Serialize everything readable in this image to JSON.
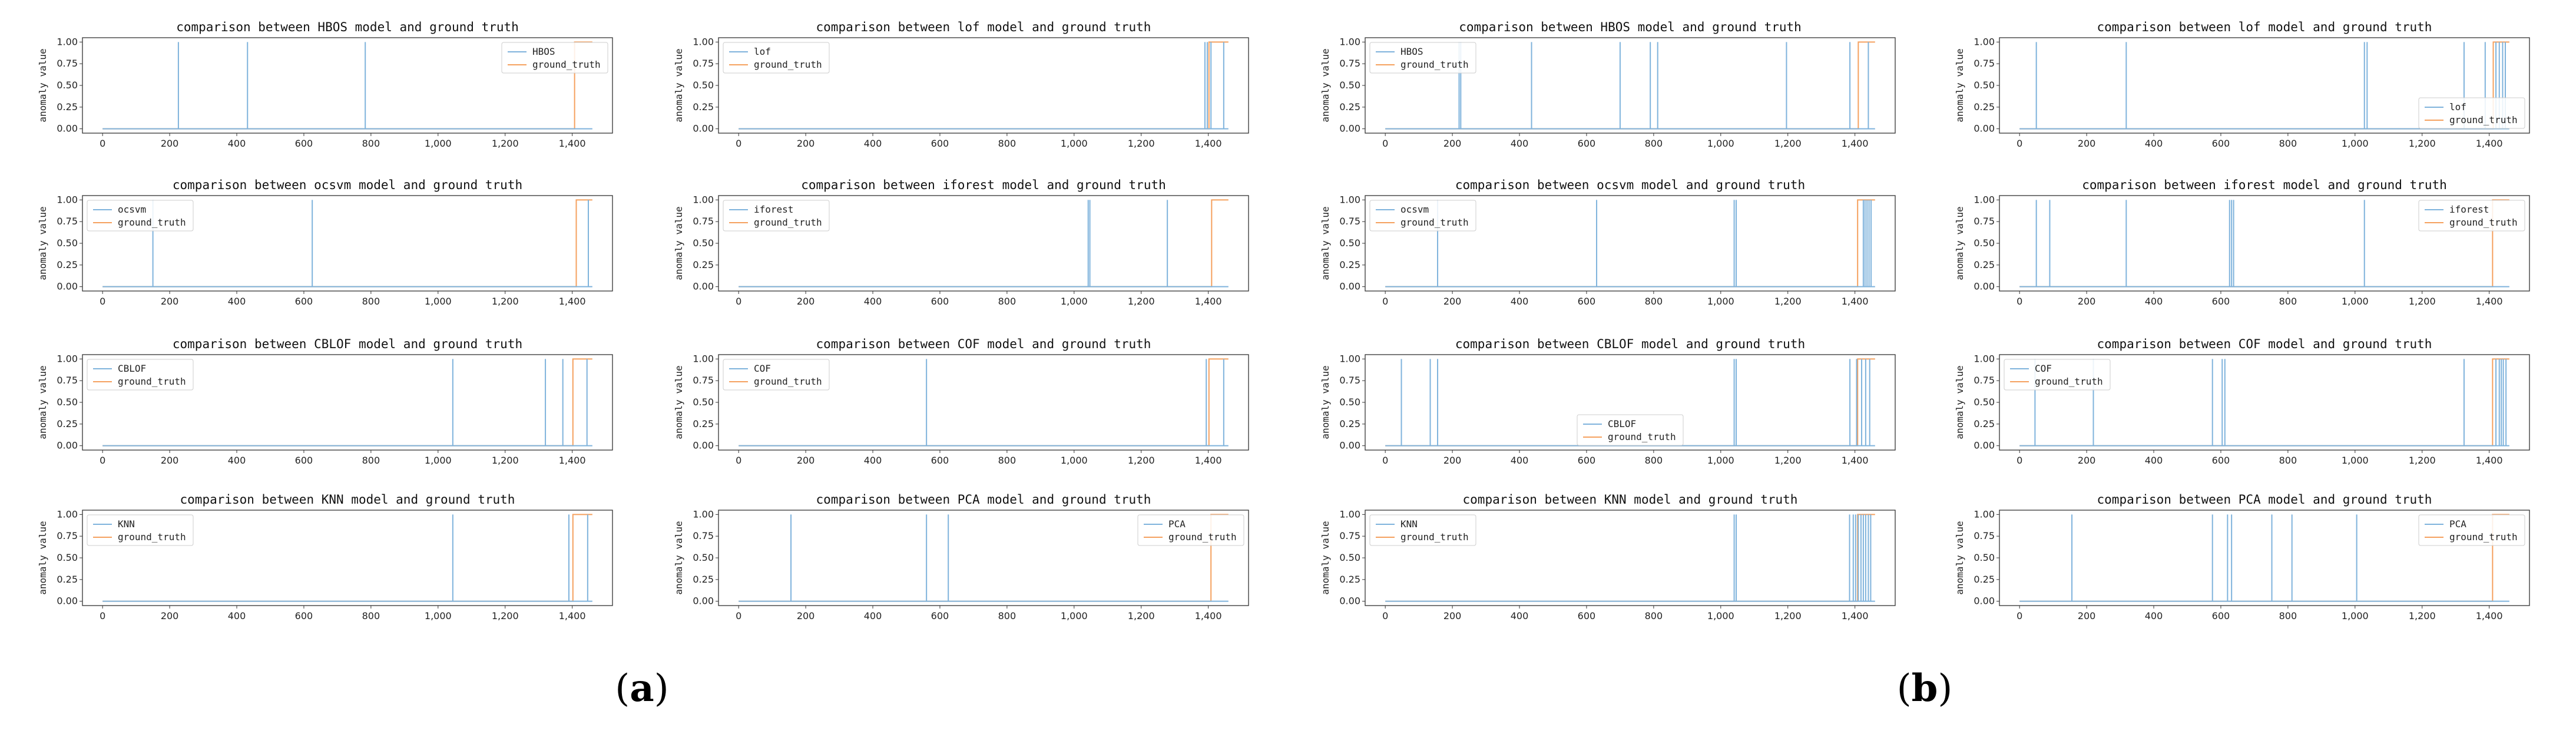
{
  "figure_labels": [
    {
      "open": "(",
      "letter": "a",
      "close": ")"
    },
    {
      "open": "(",
      "letter": "b",
      "close": ")"
    }
  ],
  "colors": {
    "model": "#7fb3dc",
    "truth": "#f5a15f",
    "axis": "#333333"
  },
  "chart_data": [
    {
      "type": "line",
      "group": "a",
      "title": "comparison between HBOS model and ground truth",
      "ylabel": "anomaly value",
      "legend": [
        "HBOS",
        "ground_truth"
      ],
      "legend_loc": "upper-right",
      "xlim": [
        -60,
        1520
      ],
      "ylim": [
        -0.05,
        1.05
      ],
      "xticks": [
        0,
        200,
        400,
        600,
        800,
        1000,
        1200,
        1400
      ],
      "xtick_labels": [
        "0",
        "200",
        "400",
        "600",
        "800",
        "1,000",
        "1,200",
        "1,400"
      ],
      "yticks": [
        0,
        0.25,
        0.5,
        0.75,
        1.0
      ],
      "ytick_labels": [
        "0.00",
        "0.25",
        "0.50",
        "0.75",
        "1.00"
      ],
      "model_spikes": [
        226,
        432,
        783
      ],
      "truth_rise": 1407,
      "x_end": 1460
    },
    {
      "type": "line",
      "group": "a",
      "title": "comparison between lof model and ground truth",
      "ylabel": "anomaly value",
      "legend": [
        "lof",
        "ground_truth"
      ],
      "legend_loc": "upper-left",
      "xlim": [
        -60,
        1520
      ],
      "ylim": [
        -0.05,
        1.05
      ],
      "xticks": [
        0,
        200,
        400,
        600,
        800,
        1000,
        1200,
        1400
      ],
      "xtick_labels": [
        "0",
        "200",
        "400",
        "600",
        "800",
        "1,000",
        "1,200",
        "1,400"
      ],
      "yticks": [
        0,
        0.25,
        0.5,
        0.75,
        1.0
      ],
      "ytick_labels": [
        "0.00",
        "0.25",
        "0.50",
        "0.75",
        "1.00"
      ],
      "model_spikes": [
        1390,
        1397,
        1408,
        1446
      ],
      "truth_rise": 1402,
      "x_end": 1460
    },
    {
      "type": "line",
      "group": "a",
      "title": "comparison between ocsvm model and ground truth",
      "ylabel": "anomaly value",
      "legend": [
        "ocsvm",
        "ground_truth"
      ],
      "legend_loc": "upper-left",
      "xlim": [
        -60,
        1520
      ],
      "ylim": [
        -0.05,
        1.05
      ],
      "xticks": [
        0,
        200,
        400,
        600,
        800,
        1000,
        1200,
        1400
      ],
      "xtick_labels": [
        "0",
        "200",
        "400",
        "600",
        "800",
        "1,000",
        "1,200",
        "1,400"
      ],
      "yticks": [
        0,
        0.25,
        0.5,
        0.75,
        1.0
      ],
      "ytick_labels": [
        "0.00",
        "0.25",
        "0.50",
        "0.75",
        "1.00"
      ],
      "model_spikes": [
        150,
        625,
        1448
      ],
      "truth_rise": 1412,
      "x_end": 1460
    },
    {
      "type": "line",
      "group": "a",
      "title": "comparison between iforest model and ground truth",
      "ylabel": "anomaly value",
      "legend": [
        "iforest",
        "ground_truth"
      ],
      "legend_loc": "upper-left",
      "xlim": [
        -60,
        1520
      ],
      "ylim": [
        -0.05,
        1.05
      ],
      "xticks": [
        0,
        200,
        400,
        600,
        800,
        1000,
        1200,
        1400
      ],
      "xtick_labels": [
        "0",
        "200",
        "400",
        "600",
        "800",
        "1,000",
        "1,200",
        "1,400"
      ],
      "yticks": [
        0,
        0.25,
        0.5,
        0.75,
        1.0
      ],
      "ytick_labels": [
        "0.00",
        "0.25",
        "0.50",
        "0.75",
        "1.00"
      ],
      "model_spikes": [
        1042,
        1047,
        1278
      ],
      "truth_rise": 1410,
      "x_end": 1460
    },
    {
      "type": "line",
      "group": "a",
      "title": "comparison between CBLOF model and ground truth",
      "ylabel": "anomaly value",
      "legend": [
        "CBLOF",
        "ground_truth"
      ],
      "legend_loc": "upper-left",
      "xlim": [
        -60,
        1520
      ],
      "ylim": [
        -0.05,
        1.05
      ],
      "xticks": [
        0,
        200,
        400,
        600,
        800,
        1000,
        1200,
        1400
      ],
      "xtick_labels": [
        "0",
        "200",
        "400",
        "600",
        "800",
        "1,000",
        "1,200",
        "1,400"
      ],
      "yticks": [
        0,
        0.25,
        0.5,
        0.75,
        1.0
      ],
      "ytick_labels": [
        "0.00",
        "0.25",
        "0.50",
        "0.75",
        "1.00"
      ],
      "model_spikes": [
        1044,
        1320,
        1372,
        1444
      ],
      "truth_rise": 1402,
      "x_end": 1460
    },
    {
      "type": "line",
      "group": "a",
      "title": "comparison between COF model and ground truth",
      "ylabel": "anomaly value",
      "legend": [
        "COF",
        "ground_truth"
      ],
      "legend_loc": "upper-left",
      "xlim": [
        -60,
        1520
      ],
      "ylim": [
        -0.05,
        1.05
      ],
      "xticks": [
        0,
        200,
        400,
        600,
        800,
        1000,
        1200,
        1400
      ],
      "xtick_labels": [
        "0",
        "200",
        "400",
        "600",
        "800",
        "1,000",
        "1,200",
        "1,400"
      ],
      "yticks": [
        0,
        0.25,
        0.5,
        0.75,
        1.0
      ],
      "ytick_labels": [
        "0.00",
        "0.25",
        "0.50",
        "0.75",
        "1.00"
      ],
      "model_spikes": [
        560,
        1394,
        1446
      ],
      "truth_rise": 1402,
      "x_end": 1460
    },
    {
      "type": "line",
      "group": "a",
      "title": "comparison between KNN model and ground truth",
      "ylabel": "anomaly value",
      "legend": [
        "KNN",
        "ground_truth"
      ],
      "legend_loc": "upper-left",
      "xlim": [
        -60,
        1520
      ],
      "ylim": [
        -0.05,
        1.05
      ],
      "xticks": [
        0,
        200,
        400,
        600,
        800,
        1000,
        1200,
        1400
      ],
      "xtick_labels": [
        "0",
        "200",
        "400",
        "600",
        "800",
        "1,000",
        "1,200",
        "1,400"
      ],
      "yticks": [
        0,
        0.25,
        0.5,
        0.75,
        1.0
      ],
      "ytick_labels": [
        "0.00",
        "0.25",
        "0.50",
        "0.75",
        "1.00"
      ],
      "model_spikes": [
        1044,
        1390,
        1446
      ],
      "truth_rise": 1402,
      "x_end": 1460
    },
    {
      "type": "line",
      "group": "a",
      "title": "comparison between PCA model and ground truth",
      "ylabel": "anomaly value",
      "legend": [
        "PCA",
        "ground_truth"
      ],
      "legend_loc": "upper-right",
      "xlim": [
        -60,
        1520
      ],
      "ylim": [
        -0.05,
        1.05
      ],
      "xticks": [
        0,
        200,
        400,
        600,
        800,
        1000,
        1200,
        1400
      ],
      "xtick_labels": [
        "0",
        "200",
        "400",
        "600",
        "800",
        "1,000",
        "1,200",
        "1,400"
      ],
      "yticks": [
        0,
        0.25,
        0.5,
        0.75,
        1.0
      ],
      "ytick_labels": [
        "0.00",
        "0.25",
        "0.50",
        "0.75",
        "1.00"
      ],
      "model_spikes": [
        156,
        560,
        625
      ],
      "truth_rise": 1408,
      "x_end": 1460
    },
    {
      "type": "line",
      "group": "b",
      "title": "comparison between HBOS model and ground truth",
      "ylabel": "anomaly value",
      "legend": [
        "HBOS",
        "ground_truth"
      ],
      "legend_loc": "upper-left",
      "xlim": [
        -60,
        1520
      ],
      "ylim": [
        -0.05,
        1.05
      ],
      "xticks": [
        0,
        200,
        400,
        600,
        800,
        1000,
        1200,
        1400
      ],
      "xtick_labels": [
        "0",
        "200",
        "400",
        "600",
        "800",
        "1,000",
        "1,200",
        "1,400"
      ],
      "yticks": [
        0,
        0.25,
        0.5,
        0.75,
        1.0
      ],
      "ytick_labels": [
        "0.00",
        "0.25",
        "0.50",
        "0.75",
        "1.00"
      ],
      "model_spikes": [
        220,
        225,
        436,
        700,
        790,
        812,
        1196,
        1385,
        1440
      ],
      "truth_rise": 1410,
      "x_end": 1460
    },
    {
      "type": "line",
      "group": "b",
      "title": "comparison between lof model and ground truth",
      "ylabel": "anomaly value",
      "legend": [
        "lof",
        "ground_truth"
      ],
      "legend_loc": "lower-right",
      "xlim": [
        -60,
        1520
      ],
      "ylim": [
        -0.05,
        1.05
      ],
      "xticks": [
        0,
        200,
        400,
        600,
        800,
        1000,
        1200,
        1400
      ],
      "xtick_labels": [
        "0",
        "200",
        "400",
        "600",
        "800",
        "1,000",
        "1,200",
        "1,400"
      ],
      "yticks": [
        0,
        0.25,
        0.5,
        0.75,
        1.0
      ],
      "ytick_labels": [
        "0.00",
        "0.25",
        "0.50",
        "0.75",
        "1.00"
      ],
      "model_spikes": [
        50,
        318,
        1028,
        1036,
        1325,
        1388,
        1420,
        1430,
        1440,
        1448
      ],
      "truth_rise": 1412,
      "x_end": 1460
    },
    {
      "type": "line",
      "group": "b",
      "title": "comparison between ocsvm model and ground truth",
      "ylabel": "anomaly value",
      "legend": [
        "ocsvm",
        "ground_truth"
      ],
      "legend_loc": "upper-left",
      "xlim": [
        -60,
        1520
      ],
      "ylim": [
        -0.05,
        1.05
      ],
      "xticks": [
        0,
        200,
        400,
        600,
        800,
        1000,
        1200,
        1400
      ],
      "xtick_labels": [
        "0",
        "200",
        "400",
        "600",
        "800",
        "1,000",
        "1,200",
        "1,400"
      ],
      "yticks": [
        0,
        0.25,
        0.5,
        0.75,
        1.0
      ],
      "ytick_labels": [
        "0.00",
        "0.25",
        "0.50",
        "0.75",
        "1.00"
      ],
      "model_spikes": [
        156,
        630,
        1040,
        1046,
        1425,
        1430,
        1436,
        1442,
        1448
      ],
      "truth_rise": 1408,
      "x_end": 1460
    },
    {
      "type": "line",
      "group": "b",
      "title": "comparison between iforest model and ground truth",
      "ylabel": "anomaly value",
      "legend": [
        "iforest",
        "ground_truth"
      ],
      "legend_loc": "upper-right",
      "xlim": [
        -60,
        1520
      ],
      "ylim": [
        -0.05,
        1.05
      ],
      "xticks": [
        0,
        200,
        400,
        600,
        800,
        1000,
        1200,
        1400
      ],
      "xtick_labels": [
        "0",
        "200",
        "400",
        "600",
        "800",
        "1,000",
        "1,200",
        "1,400"
      ],
      "yticks": [
        0,
        0.25,
        0.5,
        0.75,
        1.0
      ],
      "ytick_labels": [
        "0.00",
        "0.25",
        "0.50",
        "0.75",
        "1.00"
      ],
      "model_spikes": [
        50,
        90,
        318,
        626,
        632,
        638,
        1028
      ],
      "truth_rise": 1410,
      "x_end": 1460
    },
    {
      "type": "line",
      "group": "b",
      "title": "comparison between CBLOF model and ground truth",
      "ylabel": "anomaly value",
      "legend": [
        "CBLOF",
        "ground_truth"
      ],
      "legend_loc": "lower-center",
      "xlim": [
        -60,
        1520
      ],
      "ylim": [
        -0.05,
        1.05
      ],
      "xticks": [
        0,
        200,
        400,
        600,
        800,
        1000,
        1200,
        1400
      ],
      "xtick_labels": [
        "0",
        "200",
        "400",
        "600",
        "800",
        "1,000",
        "1,200",
        "1,400"
      ],
      "yticks": [
        0,
        0.25,
        0.5,
        0.75,
        1.0
      ],
      "ytick_labels": [
        "0.00",
        "0.25",
        "0.50",
        "0.75",
        "1.00"
      ],
      "model_spikes": [
        48,
        134,
        156,
        1040,
        1046,
        1385,
        1405,
        1420,
        1432,
        1444
      ],
      "truth_rise": 1408,
      "x_end": 1460
    },
    {
      "type": "line",
      "group": "b",
      "title": "comparison between COF model and ground truth",
      "ylabel": "anomaly value",
      "legend": [
        "COF",
        "ground_truth"
      ],
      "legend_loc": "upper-left",
      "xlim": [
        -60,
        1520
      ],
      "ylim": [
        -0.05,
        1.05
      ],
      "xticks": [
        0,
        200,
        400,
        600,
        800,
        1000,
        1200,
        1400
      ],
      "xtick_labels": [
        "0",
        "200",
        "400",
        "600",
        "800",
        "1,000",
        "1,200",
        "1,400"
      ],
      "yticks": [
        0,
        0.25,
        0.5,
        0.75,
        1.0
      ],
      "ytick_labels": [
        "0.00",
        "0.25",
        "0.50",
        "0.75",
        "1.00"
      ],
      "model_spikes": [
        46,
        220,
        575,
        604,
        612,
        1325,
        1420,
        1430,
        1436,
        1442,
        1450
      ],
      "truth_rise": 1410,
      "x_end": 1460
    },
    {
      "type": "line",
      "group": "b",
      "title": "comparison between KNN model and ground truth",
      "ylabel": "anomaly value",
      "legend": [
        "KNN",
        "ground_truth"
      ],
      "legend_loc": "upper-left",
      "xlim": [
        -60,
        1520
      ],
      "ylim": [
        -0.05,
        1.05
      ],
      "xticks": [
        0,
        200,
        400,
        600,
        800,
        1000,
        1200,
        1400
      ],
      "xtick_labels": [
        "0",
        "200",
        "400",
        "600",
        "800",
        "1,000",
        "1,200",
        "1,400"
      ],
      "yticks": [
        0,
        0.25,
        0.5,
        0.75,
        1.0
      ],
      "ytick_labels": [
        "0.00",
        "0.25",
        "0.50",
        "0.75",
        "1.00"
      ],
      "model_spikes": [
        1040,
        1046,
        1384,
        1395,
        1402,
        1410,
        1418,
        1425,
        1432,
        1440,
        1447
      ],
      "truth_rise": 1408,
      "x_end": 1460
    },
    {
      "type": "line",
      "group": "b",
      "title": "comparison between PCA model and ground truth",
      "ylabel": "anomaly value",
      "legend": [
        "PCA",
        "ground_truth"
      ],
      "legend_loc": "upper-right",
      "xlim": [
        -60,
        1520
      ],
      "ylim": [
        -0.05,
        1.05
      ],
      "xticks": [
        0,
        200,
        400,
        600,
        800,
        1000,
        1200,
        1400
      ],
      "xtick_labels": [
        "0",
        "200",
        "400",
        "600",
        "800",
        "1,000",
        "1,200",
        "1,400"
      ],
      "yticks": [
        0,
        0.25,
        0.5,
        0.75,
        1.0
      ],
      "ytick_labels": [
        "0.00",
        "0.25",
        "0.50",
        "0.75",
        "1.00"
      ],
      "model_spikes": [
        156,
        575,
        620,
        632,
        752,
        812,
        1005
      ],
      "truth_rise": 1410,
      "x_end": 1460
    }
  ]
}
